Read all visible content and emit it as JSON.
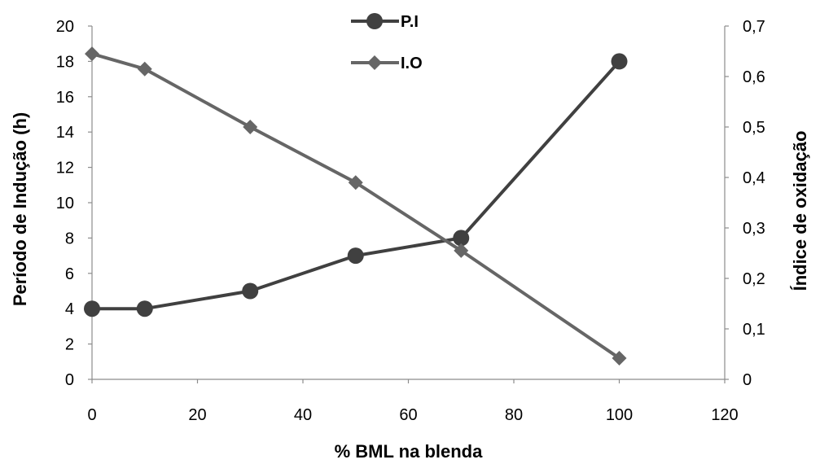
{
  "chart_data": {
    "type": "line",
    "xlabel": "% BML na blenda",
    "ylabel_left": "Período de Indução (h)",
    "ylabel_right": "Índice de oxidação",
    "xlim": [
      0,
      120
    ],
    "x_ticks": [
      "0",
      "20",
      "40",
      "60",
      "80",
      "100",
      "120"
    ],
    "ylim_left": [
      0,
      20
    ],
    "y_left_ticks": [
      "0",
      "2",
      "4",
      "6",
      "8",
      "10",
      "12",
      "14",
      "16",
      "18",
      "20"
    ],
    "ylim_right": [
      0,
      0.7
    ],
    "y_right_ticks": [
      "0",
      "0,1",
      "0,2",
      "0,3",
      "0,4",
      "0,5",
      "0,6",
      "0,7"
    ],
    "grid": false,
    "legend_position": "top-center",
    "series": [
      {
        "name": "P.I",
        "axis": "left",
        "marker": "circle",
        "color": "#404040",
        "points": [
          {
            "x": 0,
            "y": 4
          },
          {
            "x": 10,
            "y": 4
          },
          {
            "x": 30,
            "y": 5
          },
          {
            "x": 50,
            "y": 7
          },
          {
            "x": 70,
            "y": 8
          },
          {
            "x": 100,
            "y": 18
          }
        ]
      },
      {
        "name": "I.O",
        "axis": "right",
        "marker": "diamond",
        "color": "#666666",
        "points": [
          {
            "x": 0,
            "y": 0.645
          },
          {
            "x": 10,
            "y": 0.615
          },
          {
            "x": 30,
            "y": 0.5
          },
          {
            "x": 50,
            "y": 0.39
          },
          {
            "x": 70,
            "y": 0.255
          },
          {
            "x": 100,
            "y": 0.042
          }
        ]
      }
    ]
  }
}
